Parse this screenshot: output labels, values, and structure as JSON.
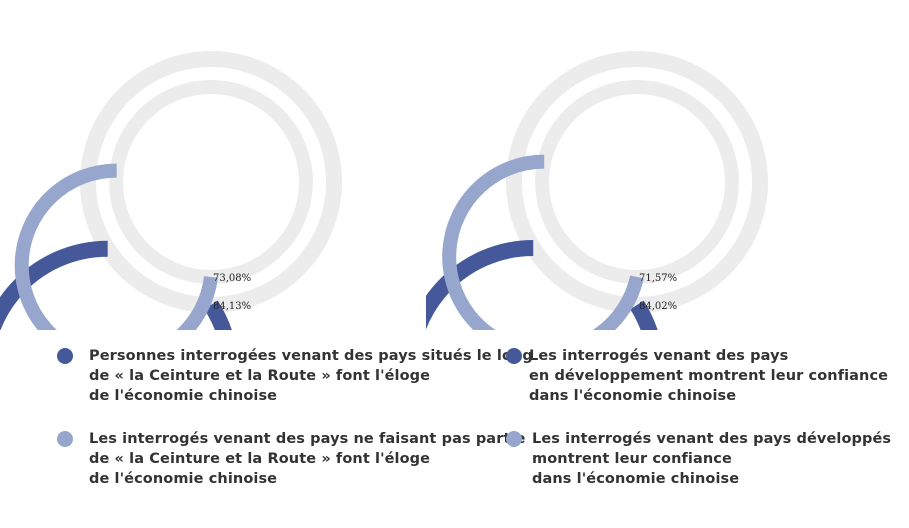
{
  "colors": {
    "outer": "#45599a",
    "inner": "#97a6cc",
    "track": "#ececec"
  },
  "chart_data": [
    {
      "type": "pie",
      "series": [
        {
          "name": "Personnes interrogées venant des pays situés le long de « la Ceinture et la Route » font l'éloge de l'économie chinoise",
          "value": 84.13,
          "label": "84,13%",
          "ring": "outer"
        },
        {
          "name": "Les interrogés venant des pays ne faisant pas partie de « la Ceinture et la Route » font l'éloge de l'économie chinoise",
          "value": 73.08,
          "label": "73,08%",
          "ring": "inner"
        }
      ]
    },
    {
      "type": "pie",
      "series": [
        {
          "name": "Les interrogés venant des pays en développement montrent leur confiance dans l'économie chinoise",
          "value": 84.02,
          "label": "84,02%",
          "ring": "outer"
        },
        {
          "name": "Les interrogés venant des pays développés montrent leur confiance dans l'économie chinoise",
          "value": 71.57,
          "label": "71,57%",
          "ring": "inner"
        }
      ]
    }
  ],
  "legend": [
    {
      "text": "Personnes interrogées venant des pays situés le long\nde « la Ceinture et la Route » font l'éloge\nde l'économie chinoise",
      "color": "#45599a"
    },
    {
      "text": "Les interrogés venant des pays ne faisant pas partie\nde « la Ceinture et la Route » font l'éloge\nde l'économie chinoise",
      "color": "#97a6cc"
    },
    {
      "text": "Les interrogés venant des pays\nen développement montrent leur confiance\ndans l'économie chinoise",
      "color": "#45599a"
    },
    {
      "text": "Les interrogés venant des pays développés\nmontrent leur confiance\ndans l'économie chinoise",
      "color": "#97a6cc"
    }
  ]
}
